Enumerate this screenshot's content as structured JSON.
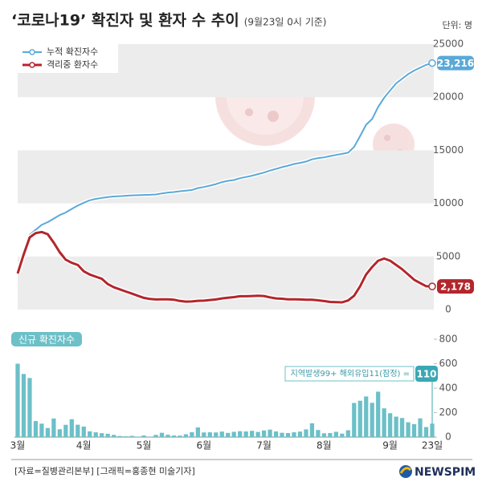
{
  "chart_data": [
    {
      "type": "line",
      "title": "‘코로나19’ 확진자 및 환자 수 추이",
      "subtitle": "(9월23일 0시 기준)",
      "unit": "단위: 명",
      "ylim": [
        0,
        25000
      ],
      "yticks": [
        0,
        5000,
        10000,
        15000,
        20000,
        25000
      ],
      "bands": true,
      "legend": "top-left",
      "series": [
        {
          "name": "누적 확진자수",
          "color": "#5aa9d8",
          "end_label": "23,216",
          "values": [
            3526,
            5328,
            7041,
            7513,
            7979,
            8236,
            8565,
            8897,
            9137,
            9478,
            9786,
            10062,
            10284,
            10423,
            10512,
            10591,
            10653,
            10683,
            10718,
            10752,
            10774,
            10793,
            10806,
            10840,
            10936,
            11018,
            11065,
            11142,
            11190,
            11265,
            11441,
            11541,
            11668,
            11814,
            12003,
            12121,
            12198,
            12373,
            12484,
            12602,
            12757,
            12904,
            13091,
            13244,
            13417,
            13551,
            13711,
            13816,
            13938,
            14150,
            14269,
            14336,
            14456,
            14562,
            14660,
            14770,
            15318,
            16346,
            17399,
            17945,
            19077,
            19947,
            20644,
            21296,
            21743,
            22176,
            22504,
            22783,
            23045,
            23216
          ]
        },
        {
          "name": "격리중 환자수",
          "color": "#b3262c",
          "end_label": "2,178",
          "values": [
            3400,
            5200,
            6800,
            7200,
            7300,
            7100,
            6300,
            5400,
            4700,
            4400,
            4200,
            3600,
            3300,
            3100,
            2900,
            2400,
            2100,
            1900,
            1700,
            1500,
            1300,
            1100,
            1000,
            950,
            970,
            970,
            930,
            810,
            750,
            760,
            820,
            840,
            900,
            950,
            1050,
            1120,
            1170,
            1250,
            1250,
            1280,
            1310,
            1280,
            1150,
            1050,
            1020,
            970,
            960,
            950,
            930,
            930,
            870,
            800,
            720,
            700,
            680,
            850,
            1300,
            2200,
            3300,
            4000,
            4600,
            4800,
            4600,
            4200,
            3800,
            3300,
            2800,
            2500,
            2200,
            2178
          ]
        }
      ]
    },
    {
      "type": "bar",
      "title": "신규 확진자수",
      "annotation": "지역발생99+ 해외유입11(잠정) =",
      "end_label": "110",
      "color": "#6cc0c8",
      "ylim": [
        0,
        800
      ],
      "yticks": [
        0,
        200,
        400,
        600,
        800
      ],
      "categories": [
        "3월",
        null,
        null,
        null,
        null,
        null,
        null,
        null,
        null,
        null,
        null,
        "4월",
        null,
        null,
        null,
        null,
        null,
        null,
        null,
        null,
        null,
        "5월",
        null,
        null,
        null,
        null,
        null,
        null,
        null,
        null,
        null,
        "6월",
        null,
        null,
        null,
        null,
        null,
        null,
        null,
        null,
        null,
        "7월",
        null,
        null,
        null,
        null,
        null,
        null,
        null,
        null,
        null,
        "8월",
        null,
        null,
        null,
        null,
        null,
        null,
        null,
        null,
        null,
        null,
        "9월",
        null,
        null,
        null,
        null,
        null,
        null,
        "23일"
      ],
      "values": [
        600,
        516,
        483,
        131,
        110,
        74,
        152,
        64,
        100,
        146,
        101,
        86,
        47,
        39,
        32,
        27,
        18,
        9,
        6,
        10,
        4,
        13,
        2,
        18,
        35,
        19,
        13,
        12,
        23,
        40,
        79,
        38,
        39,
        38,
        45,
        34,
        43,
        48,
        46,
        51,
        42,
        54,
        61,
        46,
        35,
        33,
        39,
        45,
        63,
        113,
        58,
        31,
        33,
        43,
        28,
        56,
        279,
        297,
        332,
        280,
        371,
        235,
        195,
        167,
        156,
        121,
        106,
        153,
        82,
        110
      ]
    }
  ],
  "footer": {
    "source": "[자료=질병관리본부] [그래픽=홍종현 미술기자]",
    "logo": "NEWSPIM"
  }
}
